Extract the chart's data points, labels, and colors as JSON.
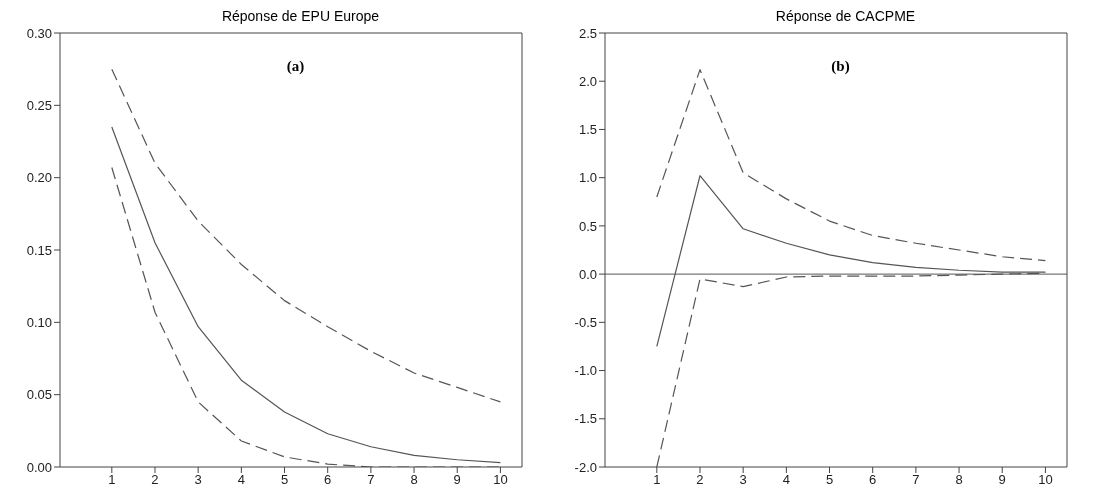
{
  "chart_data": [
    {
      "type": "line",
      "title": "Réponse de EPU Europe",
      "annotations": [
        "(a)"
      ],
      "x": [
        1,
        2,
        3,
        4,
        5,
        6,
        7,
        8,
        9,
        10
      ],
      "xlim": [
        -0.2,
        10.5
      ],
      "xticks": [
        1,
        2,
        3,
        4,
        5,
        6,
        7,
        8,
        9,
        10
      ],
      "ylim": [
        0,
        0.3
      ],
      "yticks": [
        {
          "value": 0,
          "label": "0.00"
        },
        {
          "value": 0.05,
          "label": "0.05"
        },
        {
          "value": 0.1,
          "label": "0.10"
        },
        {
          "value": 0.15,
          "label": "0.15"
        },
        {
          "value": 0.2,
          "label": "0.20"
        },
        {
          "value": 0.25,
          "label": "0.25"
        },
        {
          "value": 0.3,
          "label": "0.30"
        }
      ],
      "grid": false,
      "legend": false,
      "marker": "none",
      "series": [
        {
          "color": "#555555",
          "line_style": "solid",
          "values": [
            0.235,
            0.155,
            0.097,
            0.06,
            0.038,
            0.023,
            0.014,
            0.008,
            0.005,
            0.003
          ]
        },
        {
          "color": "#555555",
          "line_style": "dashed",
          "values": [
            0.275,
            0.21,
            0.17,
            0.14,
            0.115,
            0.097,
            0.08,
            0.065,
            0.055,
            0.045
          ]
        },
        {
          "color": "#555555",
          "line_style": "dashed",
          "values": [
            0.207,
            0.107,
            0.045,
            0.018,
            0.007,
            0.002,
            0.0,
            0.0,
            0.0,
            0.0
          ]
        }
      ]
    },
    {
      "type": "line",
      "title": "Réponse de CACPME",
      "annotations": [
        "(b)"
      ],
      "x": [
        1,
        2,
        3,
        4,
        5,
        6,
        7,
        8,
        9,
        10
      ],
      "xlim": [
        -0.2,
        10.5
      ],
      "xticks": [
        1,
        2,
        3,
        4,
        5,
        6,
        7,
        8,
        9,
        10
      ],
      "ylim": [
        -2,
        2.5
      ],
      "yticks": [
        {
          "value": -2,
          "label": "-2.0"
        },
        {
          "value": -1.5,
          "label": "-1.5"
        },
        {
          "value": -1,
          "label": "-1.0"
        },
        {
          "value": -0.5,
          "label": "-0.5"
        },
        {
          "value": 0,
          "label": "0.0"
        },
        {
          "value": 0.5,
          "label": "0.5"
        },
        {
          "value": 1,
          "label": "1.0"
        },
        {
          "value": 1.5,
          "label": "1.5"
        },
        {
          "value": 2,
          "label": "2.0"
        },
        {
          "value": 2.5,
          "label": "2.5"
        }
      ],
      "grid": false,
      "legend": false,
      "marker": "none",
      "ref_lines": [
        {
          "axis": "y",
          "value": 0,
          "color": "#555555"
        }
      ],
      "series": [
        {
          "color": "#555555",
          "line_style": "solid",
          "values": [
            -0.75,
            1.02,
            0.47,
            0.32,
            0.2,
            0.12,
            0.07,
            0.04,
            0.02,
            0.02
          ]
        },
        {
          "color": "#555555",
          "line_style": "dashed",
          "values": [
            0.8,
            2.12,
            1.05,
            0.78,
            0.55,
            0.4,
            0.32,
            0.25,
            0.18,
            0.14
          ]
        },
        {
          "color": "#555555",
          "line_style": "dashed",
          "values": [
            -2.0,
            -0.05,
            -0.13,
            -0.03,
            -0.02,
            -0.02,
            -0.02,
            -0.01,
            0.0,
            0.01
          ]
        }
      ]
    }
  ]
}
